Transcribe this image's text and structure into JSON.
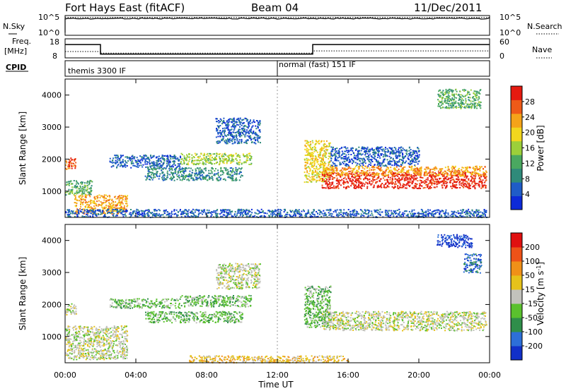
{
  "header": {
    "station": "Fort Hays East (fitACF)",
    "beam": "Beam 04",
    "date": "11/Dec/2011"
  },
  "noise_panel": {
    "left_label": "N.Sky",
    "right_label": "N.Search",
    "left_ticks": [
      "10^5",
      "10^0"
    ],
    "right_ticks": [
      "10^5",
      "10^0"
    ]
  },
  "freq_panel": {
    "left_label_1": "Freq.",
    "left_label_2": "[MHz]",
    "right_label": "Nave",
    "left_ticks": [
      "18",
      "8"
    ],
    "right_ticks": [
      "60",
      "0"
    ]
  },
  "cpid_panel": {
    "label": "CPID",
    "segments": [
      {
        "text": "themis 3300 IF",
        "start_hour": 0
      },
      {
        "text": "normal (fast) 151 IF",
        "start_hour": 12
      }
    ]
  },
  "power_panel": {
    "ylabel": "Slant Range [km]",
    "yticks": [
      "4000",
      "3000",
      "2000",
      "1000"
    ],
    "colorbar_label": "Power [dB]",
    "colorbar_ticks": [
      "28",
      "24",
      "20",
      "16",
      "12",
      "8",
      "4"
    ]
  },
  "velocity_panel": {
    "ylabel": "Slant Range [km]",
    "yticks": [
      "4000",
      "3000",
      "2000",
      "1000"
    ],
    "colorbar_ticks": [
      "200",
      "100",
      "50",
      "15",
      "-15",
      "-50",
      "-100",
      "-200"
    ]
  },
  "velocity_colorbar_label": {
    "main": "Velocity [m s",
    "sup": "-1",
    "end": "]"
  },
  "xaxis": {
    "label": "Time UT",
    "ticks": [
      "00:00",
      "04:00",
      "08:00",
      "12:00",
      "16:00",
      "20:00",
      "00:00"
    ]
  },
  "chart_data": {
    "type": "heatmap",
    "x_range_hours": [
      0,
      24
    ],
    "y_range_km": [
      180,
      4500
    ],
    "power_colors": [
      "#0d2ad8",
      "#1f5cc8",
      "#2f8a7a",
      "#4aa860",
      "#9ccf3a",
      "#f2d61e",
      "#f5a319",
      "#ee5a18",
      "#e51a10"
    ],
    "velocity_colors": [
      "#1230c8",
      "#2d6fd8",
      "#2f8e4a",
      "#5ac12e",
      "#c2c2bc",
      "#e6c21a",
      "#f09018",
      "#ee5218",
      "#e01010"
    ],
    "power_echoes": [
      {
        "t0": 0.0,
        "t1": 0.6,
        "r0": 1700,
        "r1": 2050,
        "level": 7
      },
      {
        "t0": 0.0,
        "t1": 1.5,
        "r0": 900,
        "r1": 1350,
        "level": 3
      },
      {
        "t0": 0.5,
        "t1": 3.5,
        "r0": 300,
        "r1": 900,
        "level": 6
      },
      {
        "t0": 2.5,
        "t1": 6.5,
        "r0": 1750,
        "r1": 2150,
        "level": 1
      },
      {
        "t0": 4.5,
        "t1": 10.0,
        "r0": 1350,
        "r1": 1750,
        "level": 2
      },
      {
        "t0": 6.5,
        "t1": 10.5,
        "r0": 1850,
        "r1": 2200,
        "level": 4
      },
      {
        "t0": 8.5,
        "t1": 11.0,
        "r0": 2500,
        "r1": 3300,
        "level": 1
      },
      {
        "t0": 13.5,
        "t1": 15.0,
        "r0": 1300,
        "r1": 2600,
        "level": 5
      },
      {
        "t0": 14.5,
        "t1": 23.8,
        "r0": 1100,
        "r1": 1600,
        "level": 8
      },
      {
        "t0": 14.5,
        "t1": 23.8,
        "r0": 1500,
        "r1": 1800,
        "level": 6
      },
      {
        "t0": 15.0,
        "t1": 20.0,
        "r0": 1800,
        "r1": 2400,
        "level": 1
      },
      {
        "t0": 21.0,
        "t1": 23.5,
        "r0": 3600,
        "r1": 4200,
        "level": 3
      },
      {
        "t0": 0.0,
        "t1": 23.8,
        "r0": 200,
        "r1": 450,
        "level": 1
      }
    ],
    "velocity_echoes": [
      {
        "t0": 0.0,
        "t1": 0.6,
        "r0": 1700,
        "r1": 2050,
        "level": 4
      },
      {
        "t0": 0.0,
        "t1": 3.5,
        "r0": 300,
        "r1": 1350,
        "level": 4
      },
      {
        "t0": 2.5,
        "t1": 6.5,
        "r0": 1900,
        "r1": 2200,
        "level": 3
      },
      {
        "t0": 4.5,
        "t1": 10.0,
        "r0": 1450,
        "r1": 1800,
        "level": 3
      },
      {
        "t0": 6.5,
        "t1": 10.5,
        "r0": 1950,
        "r1": 2300,
        "level": 3
      },
      {
        "t0": 8.5,
        "t1": 11.0,
        "r0": 2500,
        "r1": 3300,
        "level": 4
      },
      {
        "t0": 13.5,
        "t1": 15.0,
        "r0": 1300,
        "r1": 2600,
        "level": 3
      },
      {
        "t0": 14.5,
        "t1": 23.8,
        "r0": 1200,
        "r1": 1800,
        "level": 4
      },
      {
        "t0": 21.0,
        "t1": 23.0,
        "r0": 3800,
        "r1": 4200,
        "level": 0
      },
      {
        "t0": 22.5,
        "t1": 23.5,
        "r0": 3000,
        "r1": 3600,
        "level": 1
      },
      {
        "t0": 7.0,
        "t1": 16.0,
        "r0": 200,
        "r1": 420,
        "level": 5
      }
    ],
    "noise_sky_level": 0.85,
    "noise_search_level": 0.9,
    "freq_mhz": [
      {
        "t0": 0.0,
        "t1": 2.0,
        "value": 15
      },
      {
        "t0": 2.0,
        "t1": 14.0,
        "value": 10
      },
      {
        "t0": 14.0,
        "t1": 24.0,
        "value": 15
      }
    ],
    "nave": [
      {
        "t0": 0.0,
        "t1": 2.0,
        "value": 20
      },
      {
        "t0": 2.0,
        "t1": 14.0,
        "value": 15
      },
      {
        "t0": 14.0,
        "t1": 24.0,
        "value": 22
      }
    ]
  }
}
